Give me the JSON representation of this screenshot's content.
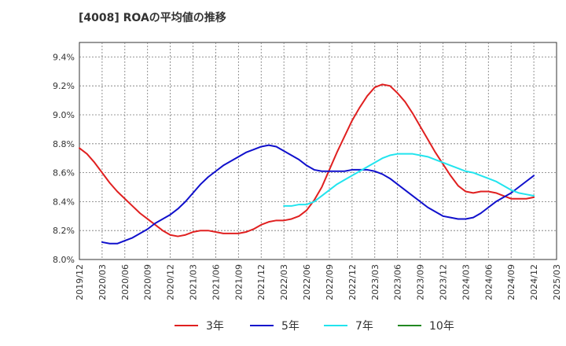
{
  "chart_data": {
    "type": "line",
    "title": "[4008]  ROAの平均値の推移",
    "xlabel": "",
    "ylabel": "",
    "ylim": [
      8.0,
      9.5
    ],
    "y_ticks": [
      "8.0%",
      "8.2%",
      "8.4%",
      "8.6%",
      "8.8%",
      "9.0%",
      "9.2%",
      "9.4%"
    ],
    "y_tick_values": [
      8.0,
      8.2,
      8.4,
      8.6,
      8.8,
      9.0,
      9.2,
      9.4
    ],
    "x_ticks": [
      "2019/12",
      "2020/03",
      "2020/06",
      "2020/09",
      "2020/12",
      "2021/03",
      "2021/06",
      "2021/09",
      "2021/12",
      "2022/03",
      "2022/06",
      "2022/09",
      "2022/12",
      "2023/03",
      "2023/06",
      "2023/09",
      "2023/12",
      "2024/03",
      "2024/06",
      "2024/09",
      "2024/12",
      "2025/03"
    ],
    "grid": true,
    "legend_position": "bottom",
    "series": [
      {
        "name": "3年",
        "color": "#e02020",
        "points": [
          [
            "2019/12",
            8.77
          ],
          [
            "2020/01",
            8.73
          ],
          [
            "2020/02",
            8.67
          ],
          [
            "2020/03",
            8.6
          ],
          [
            "2020/04",
            8.53
          ],
          [
            "2020/05",
            8.47
          ],
          [
            "2020/06",
            8.42
          ],
          [
            "2020/07",
            8.37
          ],
          [
            "2020/08",
            8.32
          ],
          [
            "2020/09",
            8.28
          ],
          [
            "2020/10",
            8.24
          ],
          [
            "2020/11",
            8.2
          ],
          [
            "2020/12",
            8.17
          ],
          [
            "2021/01",
            8.16
          ],
          [
            "2021/02",
            8.17
          ],
          [
            "2021/03",
            8.19
          ],
          [
            "2021/04",
            8.2
          ],
          [
            "2021/05",
            8.2
          ],
          [
            "2021/06",
            8.19
          ],
          [
            "2021/07",
            8.18
          ],
          [
            "2021/08",
            8.18
          ],
          [
            "2021/09",
            8.18
          ],
          [
            "2021/10",
            8.19
          ],
          [
            "2021/11",
            8.21
          ],
          [
            "2021/12",
            8.24
          ],
          [
            "2022/01",
            8.26
          ],
          [
            "2022/02",
            8.27
          ],
          [
            "2022/03",
            8.27
          ],
          [
            "2022/04",
            8.28
          ],
          [
            "2022/05",
            8.3
          ],
          [
            "2022/06",
            8.34
          ],
          [
            "2022/07",
            8.41
          ],
          [
            "2022/08",
            8.5
          ],
          [
            "2022/09",
            8.62
          ],
          [
            "2022/10",
            8.74
          ],
          [
            "2022/11",
            8.85
          ],
          [
            "2022/12",
            8.96
          ],
          [
            "2023/01",
            9.05
          ],
          [
            "2023/02",
            9.13
          ],
          [
            "2023/03",
            9.19
          ],
          [
            "2023/04",
            9.21
          ],
          [
            "2023/05",
            9.2
          ],
          [
            "2023/06",
            9.15
          ],
          [
            "2023/07",
            9.09
          ],
          [
            "2023/08",
            9.01
          ],
          [
            "2023/09",
            8.92
          ],
          [
            "2023/10",
            8.83
          ],
          [
            "2023/11",
            8.74
          ],
          [
            "2023/12",
            8.66
          ],
          [
            "2024/01",
            8.58
          ],
          [
            "2024/02",
            8.51
          ],
          [
            "2024/03",
            8.47
          ],
          [
            "2024/04",
            8.46
          ],
          [
            "2024/05",
            8.47
          ],
          [
            "2024/06",
            8.47
          ],
          [
            "2024/07",
            8.46
          ],
          [
            "2024/08",
            8.44
          ],
          [
            "2024/09",
            8.42
          ],
          [
            "2024/10",
            8.42
          ],
          [
            "2024/11",
            8.42
          ],
          [
            "2024/12",
            8.43
          ]
        ]
      },
      {
        "name": "5年",
        "color": "#1010cc",
        "points": [
          [
            "2020/03",
            8.12
          ],
          [
            "2020/04",
            8.11
          ],
          [
            "2020/05",
            8.11
          ],
          [
            "2020/06",
            8.13
          ],
          [
            "2020/07",
            8.15
          ],
          [
            "2020/08",
            8.18
          ],
          [
            "2020/09",
            8.21
          ],
          [
            "2020/10",
            8.25
          ],
          [
            "2020/11",
            8.28
          ],
          [
            "2020/12",
            8.31
          ],
          [
            "2021/01",
            8.35
          ],
          [
            "2021/02",
            8.4
          ],
          [
            "2021/03",
            8.46
          ],
          [
            "2021/04",
            8.52
          ],
          [
            "2021/05",
            8.57
          ],
          [
            "2021/06",
            8.61
          ],
          [
            "2021/07",
            8.65
          ],
          [
            "2021/08",
            8.68
          ],
          [
            "2021/09",
            8.71
          ],
          [
            "2021/10",
            8.74
          ],
          [
            "2021/11",
            8.76
          ],
          [
            "2021/12",
            8.78
          ],
          [
            "2022/01",
            8.79
          ],
          [
            "2022/02",
            8.78
          ],
          [
            "2022/03",
            8.75
          ],
          [
            "2022/04",
            8.72
          ],
          [
            "2022/05",
            8.69
          ],
          [
            "2022/06",
            8.65
          ],
          [
            "2022/07",
            8.62
          ],
          [
            "2022/08",
            8.61
          ],
          [
            "2022/09",
            8.61
          ],
          [
            "2022/10",
            8.61
          ],
          [
            "2022/11",
            8.61
          ],
          [
            "2022/12",
            8.62
          ],
          [
            "2023/01",
            8.62
          ],
          [
            "2023/02",
            8.62
          ],
          [
            "2023/03",
            8.61
          ],
          [
            "2023/04",
            8.59
          ],
          [
            "2023/05",
            8.56
          ],
          [
            "2023/06",
            8.52
          ],
          [
            "2023/07",
            8.48
          ],
          [
            "2023/08",
            8.44
          ],
          [
            "2023/09",
            8.4
          ],
          [
            "2023/10",
            8.36
          ],
          [
            "2023/11",
            8.33
          ],
          [
            "2023/12",
            8.3
          ],
          [
            "2024/01",
            8.29
          ],
          [
            "2024/02",
            8.28
          ],
          [
            "2024/03",
            8.28
          ],
          [
            "2024/04",
            8.29
          ],
          [
            "2024/05",
            8.32
          ],
          [
            "2024/06",
            8.36
          ],
          [
            "2024/07",
            8.4
          ],
          [
            "2024/08",
            8.43
          ],
          [
            "2024/09",
            8.46
          ],
          [
            "2024/10",
            8.5
          ],
          [
            "2024/11",
            8.54
          ],
          [
            "2024/12",
            8.58
          ]
        ]
      },
      {
        "name": "7年",
        "color": "#22e4ee",
        "points": [
          [
            "2022/03",
            8.37
          ],
          [
            "2022/04",
            8.37
          ],
          [
            "2022/05",
            8.38
          ],
          [
            "2022/06",
            8.38
          ],
          [
            "2022/07",
            8.4
          ],
          [
            "2022/08",
            8.44
          ],
          [
            "2022/09",
            8.48
          ],
          [
            "2022/10",
            8.52
          ],
          [
            "2022/11",
            8.55
          ],
          [
            "2022/12",
            8.58
          ],
          [
            "2023/01",
            8.61
          ],
          [
            "2023/02",
            8.64
          ],
          [
            "2023/03",
            8.67
          ],
          [
            "2023/04",
            8.7
          ],
          [
            "2023/05",
            8.72
          ],
          [
            "2023/06",
            8.73
          ],
          [
            "2023/07",
            8.73
          ],
          [
            "2023/08",
            8.73
          ],
          [
            "2023/09",
            8.72
          ],
          [
            "2023/10",
            8.71
          ],
          [
            "2023/11",
            8.69
          ],
          [
            "2023/12",
            8.67
          ],
          [
            "2024/01",
            8.65
          ],
          [
            "2024/02",
            8.63
          ],
          [
            "2024/03",
            8.61
          ],
          [
            "2024/04",
            8.6
          ],
          [
            "2024/05",
            8.58
          ],
          [
            "2024/06",
            8.56
          ],
          [
            "2024/07",
            8.54
          ],
          [
            "2024/08",
            8.51
          ],
          [
            "2024/09",
            8.48
          ],
          [
            "2024/10",
            8.46
          ],
          [
            "2024/11",
            8.45
          ],
          [
            "2024/12",
            8.44
          ]
        ]
      },
      {
        "name": "10年",
        "color": "#228822",
        "points": []
      }
    ]
  }
}
